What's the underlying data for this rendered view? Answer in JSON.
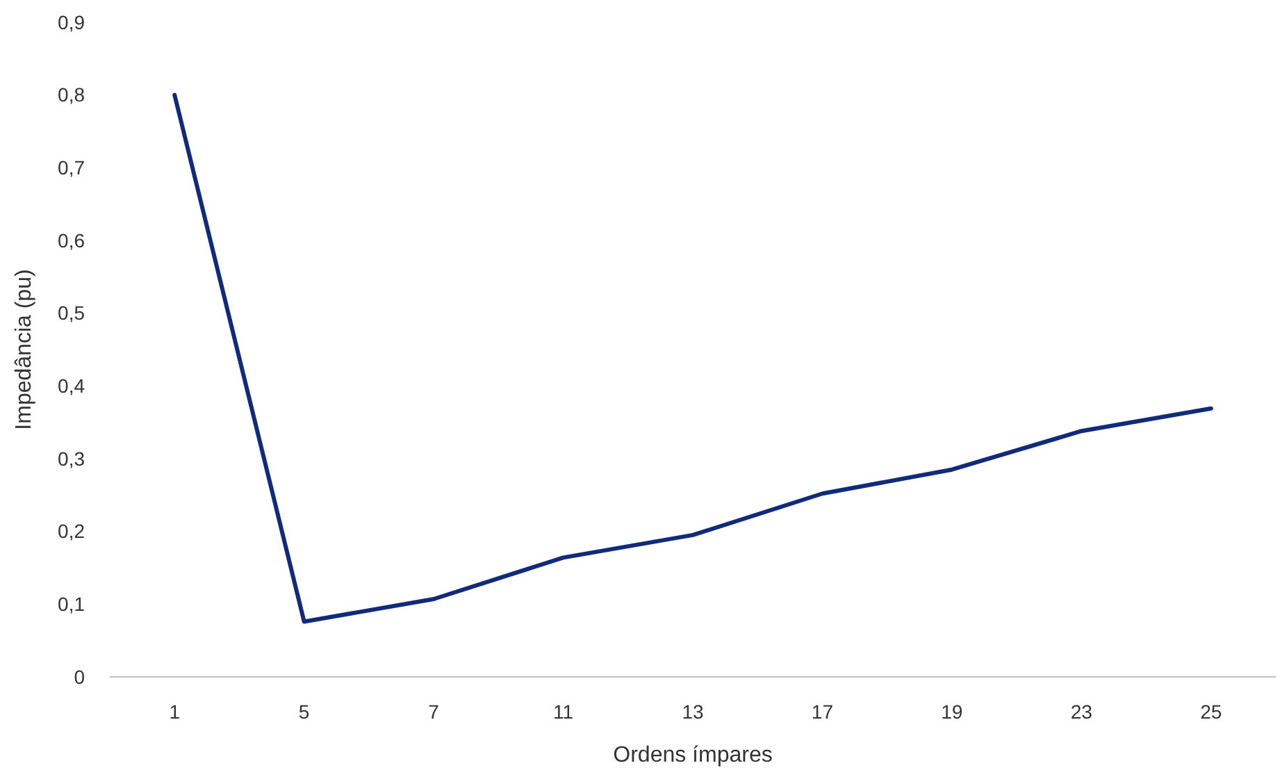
{
  "chart_data": {
    "type": "line",
    "categories": [
      "1",
      "5",
      "7",
      "11",
      "13",
      "17",
      "19",
      "23",
      "25"
    ],
    "series": [
      {
        "color": "#102a7c",
        "values": [
          0.8,
          0.076,
          0.107,
          0.164,
          0.195,
          0.252,
          0.285,
          0.338,
          0.369
        ]
      }
    ],
    "xlabel": "Ordens ímpares",
    "ylabel": "Impedância (pu)",
    "ylim": [
      0,
      0.9
    ],
    "yticks": [
      {
        "value": 0,
        "label": "0"
      },
      {
        "value": 0.1,
        "label": "0,1"
      },
      {
        "value": 0.2,
        "label": "0,2"
      },
      {
        "value": 0.3,
        "label": "0,3"
      },
      {
        "value": 0.4,
        "label": "0,4"
      },
      {
        "value": 0.5,
        "label": "0,5"
      },
      {
        "value": 0.6,
        "label": "0,6"
      },
      {
        "value": 0.7,
        "label": "0,7"
      },
      {
        "value": 0.8,
        "label": "0,8"
      },
      {
        "value": 0.9,
        "label": "0,9"
      }
    ],
    "grid": false,
    "marker": "none",
    "line_style": "solid"
  }
}
